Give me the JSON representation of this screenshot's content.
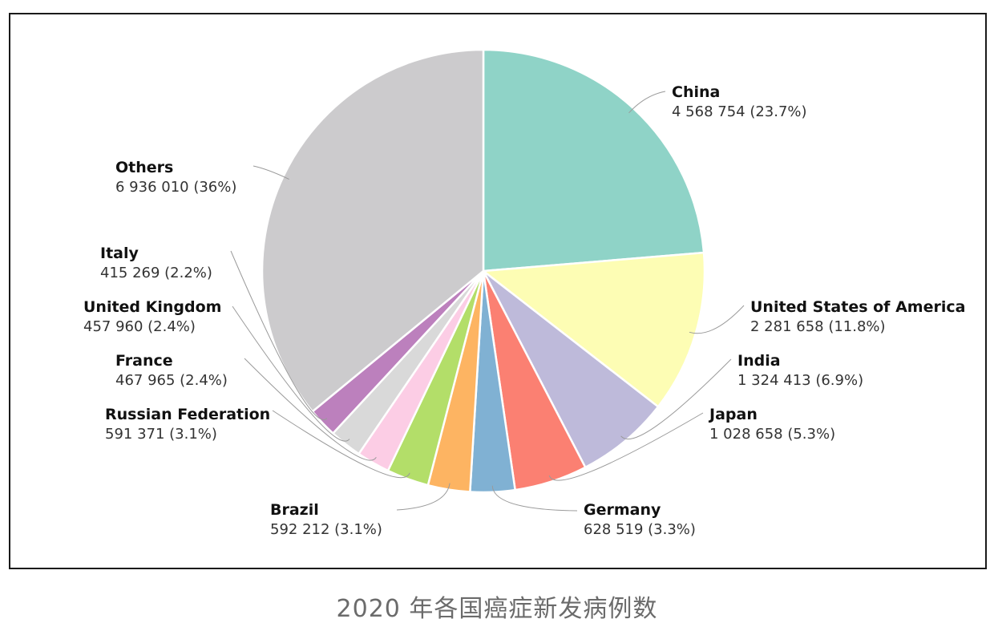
{
  "caption": "2020 年各国癌症新发病例数",
  "chart_data": {
    "type": "pie",
    "title": "",
    "slices": [
      {
        "name": "China",
        "value": 4568754,
        "display": "4 568 754 (23.7%)",
        "percent": 23.7,
        "color": "#8fd3c7"
      },
      {
        "name": "United States of America",
        "value": 2281658,
        "display": "2 281 658 (11.8%)",
        "percent": 11.8,
        "color": "#fdfdb4"
      },
      {
        "name": "India",
        "value": 1324413,
        "display": "1 324 413 (6.9%)",
        "percent": 6.9,
        "color": "#bebada"
      },
      {
        "name": "Japan",
        "value": 1028658,
        "display": "1 028 658 (5.3%)",
        "percent": 5.3,
        "color": "#fb8072"
      },
      {
        "name": "Germany",
        "value": 628519,
        "display": "628 519 (3.3%)",
        "percent": 3.3,
        "color": "#80b1d3"
      },
      {
        "name": "Brazil",
        "value": 592212,
        "display": "592 212 (3.1%)",
        "percent": 3.1,
        "color": "#fdb462"
      },
      {
        "name": "Russian Federation",
        "value": 591371,
        "display": "591 371 (3.1%)",
        "percent": 3.1,
        "color": "#b3de69"
      },
      {
        "name": "France",
        "value": 467965,
        "display": "467 965 (2.4%)",
        "percent": 2.4,
        "color": "#fccde5"
      },
      {
        "name": "United Kingdom",
        "value": 457960,
        "display": "457 960 (2.4%)",
        "percent": 2.4,
        "color": "#d9d9d9"
      },
      {
        "name": "Italy",
        "value": 415269,
        "display": "415 269 (2.2%)",
        "percent": 2.2,
        "color": "#bc80bd"
      },
      {
        "name": "Others",
        "value": 6936010,
        "display": "6 936 010 (36%)",
        "percent": 36.0,
        "color": "#cccbcd"
      }
    ]
  }
}
